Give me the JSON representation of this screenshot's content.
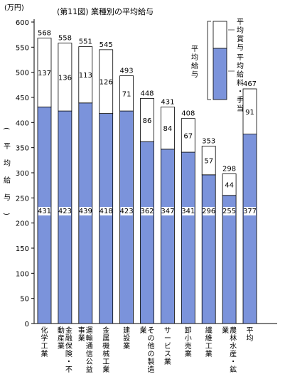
{
  "chart_data": {
    "type": "bar",
    "stacked": true,
    "title": "(第11図) 業種別の平均給与",
    "ylabel": "平均給与",
    "y_unit": "(万円)",
    "ylim": [
      0,
      600
    ],
    "yticks": [
      0,
      50,
      100,
      150,
      200,
      250,
      300,
      350,
      400,
      450,
      500,
      550,
      600
    ],
    "grid": false,
    "categories": [
      "化学工業",
      "金融保険・不動産業",
      "運輸通信公益事業",
      "金属機械工業",
      "建設業",
      "その他の製造業",
      "サービス業",
      "卸小売業",
      "繊維工業",
      "農林水産・鉱業",
      "平均"
    ],
    "series": [
      {
        "name": "平均給料・手当",
        "color": "#7b93db",
        "values": [
          431,
          423,
          439,
          418,
          423,
          362,
          347,
          341,
          296,
          255,
          377
        ]
      },
      {
        "name": "平均賞与",
        "color": "#ffffff",
        "values": [
          137,
          136,
          113,
          126,
          71,
          86,
          84,
          67,
          57,
          44,
          91
        ]
      }
    ],
    "totals": [
      568,
      558,
      551,
      545,
      493,
      448,
      431,
      408,
      353,
      298,
      467
    ],
    "legend": {
      "position": "top-right",
      "total_label": "平均給与",
      "items": [
        "平均賞与",
        "平均給料・手当"
      ]
    }
  }
}
